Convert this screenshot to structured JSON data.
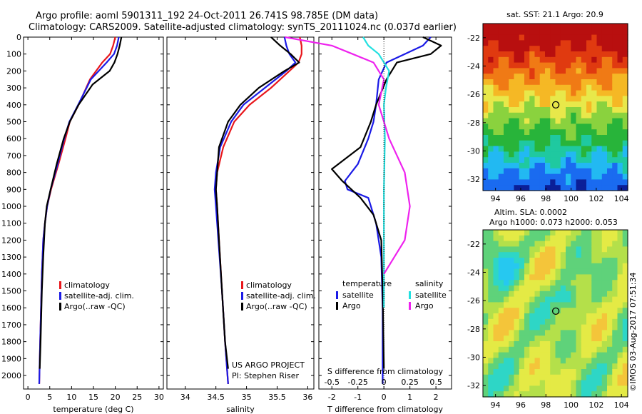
{
  "header": {
    "line1": "Argo profile: aoml 5901311_192 24-Oct-2011 26.741S 98.785E (DM data)",
    "line2": "Climatology: CARS2009. Satellite-adjusted climatology: synTS_20111024.nc (0.037d earlier)"
  },
  "footer_note": "©IMOS 03-Aug-2017 07:51:34",
  "colors": {
    "climatology": "#e8161b",
    "satellite": "#1a1ae6",
    "argo": "#000000",
    "satellite_s": "#22e0e0",
    "argo_s": "#ee22ee"
  },
  "chart_data": [
    {
      "type": "line",
      "xlabel": "temperature (deg C)",
      "xlim": [
        -1,
        31
      ],
      "xticks": [
        0,
        5,
        10,
        15,
        20,
        25,
        30
      ],
      "ylim": [
        0,
        2080
      ],
      "yticks": [
        0,
        100,
        200,
        300,
        400,
        500,
        600,
        700,
        800,
        900,
        1000,
        1100,
        1200,
        1300,
        1400,
        1500,
        1600,
        1700,
        1800,
        1900,
        2000
      ],
      "legend": [
        "climatology",
        "satellite-adj. clim.",
        "Argo(..raw -QC)"
      ],
      "series": [
        {
          "name": "climatology",
          "color": "#e8161b",
          "x": [
            20.0,
            19.5,
            18.8,
            17.0,
            14.2,
            11.6,
            9.6,
            8.6,
            7.0,
            5.3,
            4.4,
            3.9,
            3.5,
            3.2,
            3.0,
            2.8,
            2.6
          ],
          "y": [
            0,
            50,
            100,
            150,
            250,
            400,
            500,
            600,
            750,
            900,
            1000,
            1100,
            1200,
            1400,
            1600,
            1800,
            2050
          ]
        },
        {
          "name": "satellite-adj. clim.",
          "color": "#1a1ae6",
          "x": [
            20.8,
            20.4,
            19.7,
            18.0,
            14.4,
            11.5,
            9.5,
            8.3,
            6.8,
            5.2,
            4.4,
            3.9,
            3.5,
            3.2,
            3.0,
            2.8,
            2.6
          ],
          "y": [
            0,
            50,
            100,
            150,
            250,
            400,
            500,
            600,
            750,
            900,
            1000,
            1100,
            1200,
            1400,
            1600,
            1800,
            2050
          ]
        },
        {
          "name": "Argo(..raw -QC)",
          "color": "#000000",
          "x": [
            21.4,
            21.0,
            20.5,
            19.8,
            18.7,
            14.8,
            11.6,
            9.6,
            8.2,
            6.6,
            5.2,
            4.3,
            3.9,
            3.5,
            3.2,
            2.9,
            2.7
          ],
          "y": [
            0,
            50,
            100,
            150,
            200,
            280,
            400,
            500,
            600,
            750,
            900,
            1000,
            1100,
            1300,
            1500,
            1800,
            1960
          ]
        }
      ]
    },
    {
      "type": "line",
      "xlabel": "salinity",
      "xlim": [
        33.7,
        36.1
      ],
      "xticks": [
        34,
        34.5,
        35,
        35.5,
        36
      ],
      "ylim": [
        0,
        2080
      ],
      "legend": [
        "climatology",
        "satellite-adj. clim.",
        "Argo(..raw -QC)"
      ],
      "annotation": [
        "US ARGO PROJECT",
        "PI: Stephen Riser"
      ],
      "series": [
        {
          "name": "climatology",
          "color": "#e8161b",
          "x": [
            35.87,
            35.9,
            35.9,
            35.85,
            35.7,
            35.4,
            35.05,
            34.8,
            34.62,
            34.52,
            34.5,
            34.52,
            34.55,
            34.6,
            34.65,
            34.7
          ],
          "y": [
            0,
            50,
            100,
            150,
            200,
            300,
            400,
            500,
            650,
            800,
            900,
            1000,
            1200,
            1500,
            1800,
            2050
          ]
        },
        {
          "name": "satellite-adj. clim.",
          "color": "#1a1ae6",
          "x": [
            35.62,
            35.65,
            35.7,
            35.8,
            35.65,
            35.3,
            34.95,
            34.75,
            34.57,
            34.5,
            34.48,
            34.5,
            34.54,
            34.6,
            34.65,
            34.7
          ],
          "y": [
            0,
            50,
            100,
            150,
            200,
            300,
            400,
            500,
            650,
            800,
            900,
            1000,
            1200,
            1500,
            1800,
            2050
          ]
        },
        {
          "name": "Argo(..raw -QC)",
          "color": "#000000",
          "x": [
            35.4,
            35.55,
            35.72,
            35.86,
            35.62,
            35.2,
            34.9,
            34.7,
            34.55,
            34.52,
            34.5,
            34.52,
            34.55,
            34.6,
            34.65,
            34.7
          ],
          "y": [
            0,
            50,
            100,
            150,
            200,
            300,
            400,
            500,
            650,
            800,
            900,
            1000,
            1200,
            1500,
            1800,
            1960
          ]
        }
      ]
    },
    {
      "type": "line",
      "xlabel": "T difference from climatology",
      "xlabel_top": "S difference from climatology",
      "xlim": [
        -2.5,
        2.6
      ],
      "xticks": [
        -2,
        -1,
        0,
        1,
        2
      ],
      "xticks_s": [
        -0.5,
        -0.25,
        0,
        0.25,
        0.5
      ],
      "ylim": [
        0,
        2080
      ],
      "legend_left_title": "temperature",
      "legend_right_title": "salinity",
      "legend_left": [
        "satellite",
        "Argo"
      ],
      "legend_right": [
        "satellite",
        "Argo"
      ],
      "series": [
        {
          "name": "satellite",
          "group": "temperature",
          "color": "#1a1ae6",
          "x": [
            1.8,
            1.5,
            0.8,
            0.1,
            -0.2,
            -0.3,
            -0.4,
            -0.6,
            -1.0,
            -1.5,
            -1.4,
            -0.6,
            -0.3,
            -0.1,
            -0.05,
            -0.05
          ],
          "y": [
            0,
            50,
            100,
            150,
            250,
            400,
            500,
            600,
            750,
            850,
            900,
            950,
            1100,
            1300,
            1600,
            2050
          ]
        },
        {
          "name": "Argo",
          "group": "temperature",
          "color": "#000000",
          "x": [
            1.5,
            2.2,
            1.8,
            0.5,
            0.1,
            -0.3,
            -0.5,
            -0.9,
            -2.0,
            -1.6,
            -0.9,
            -0.4,
            -0.1,
            -0.05,
            0.0
          ],
          "y": [
            0,
            50,
            100,
            150,
            250,
            400,
            500,
            650,
            780,
            850,
            950,
            1050,
            1200,
            1500,
            1960
          ]
        },
        {
          "name": "satellite",
          "group": "salinity",
          "color": "#22e0e0",
          "x": [
            -0.2,
            -0.15,
            -0.05,
            0.0,
            0.05,
            0.02,
            0.0,
            0.01,
            0.0,
            0.0,
            0.0
          ],
          "y": [
            0,
            50,
            100,
            150,
            200,
            300,
            400,
            600,
            900,
            1200,
            1600
          ]
        },
        {
          "name": "Argo",
          "group": "salinity",
          "color": "#ee22ee",
          "x": [
            -0.95,
            -0.5,
            -0.3,
            -0.1,
            0.0,
            -0.05,
            0.05,
            0.2,
            0.25,
            0.2,
            0.1,
            0.0
          ],
          "y": [
            0,
            50,
            100,
            150,
            250,
            400,
            600,
            800,
            1000,
            1200,
            1300,
            1400
          ]
        }
      ]
    },
    {
      "type": "heatmap",
      "title": "sat. SST: 21.1  Argo: 20.9",
      "xlim": [
        93,
        104.5
      ],
      "ylim": [
        -32.8,
        -21
      ],
      "xticks": [
        94,
        96,
        98,
        100,
        102,
        104
      ],
      "yticks": [
        -22,
        -24,
        -26,
        -28,
        -30,
        -32
      ],
      "marker": {
        "lon": 98.785,
        "lat": -26.741
      }
    },
    {
      "type": "heatmap",
      "title": "Altim. SLA: 0.0002",
      "subtitle": "Argo h1000: 0.073 h2000: 0.053",
      "xlim": [
        93,
        104.5
      ],
      "ylim": [
        -32.8,
        -21
      ],
      "xticks": [
        94,
        96,
        98,
        100,
        102,
        104
      ],
      "yticks": [
        -22,
        -24,
        -26,
        -28,
        -30,
        -32
      ],
      "marker": {
        "lon": 98.785,
        "lat": -26.741
      }
    }
  ]
}
